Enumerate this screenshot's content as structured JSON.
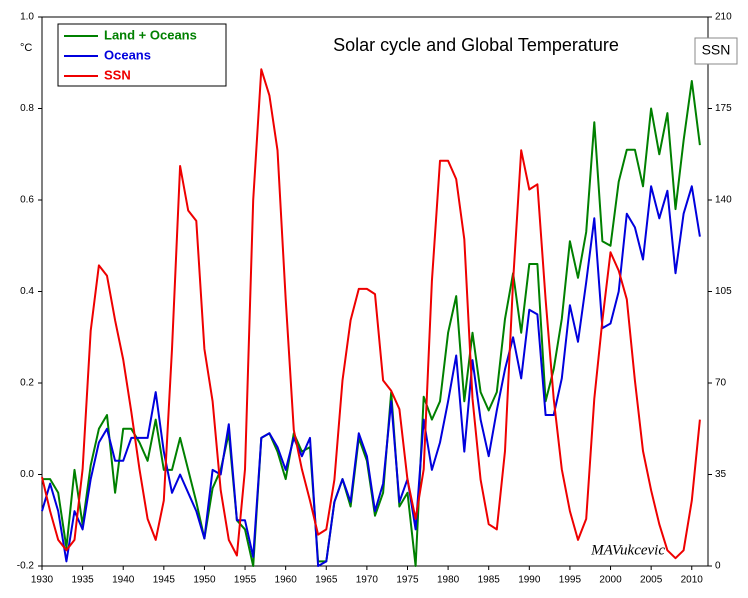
{
  "chart_data": {
    "type": "line",
    "title": "Solar cycle and Global Temperature",
    "ylabel": "°C",
    "y2label": "SSN",
    "annotation": "MAVukcevic",
    "legend": "upper left",
    "x": [
      1930,
      1931,
      1932,
      1933,
      1934,
      1935,
      1936,
      1937,
      1938,
      1939,
      1940,
      1941,
      1942,
      1943,
      1944,
      1945,
      1946,
      1947,
      1948,
      1949,
      1950,
      1951,
      1952,
      1953,
      1954,
      1955,
      1956,
      1957,
      1958,
      1959,
      1960,
      1961,
      1962,
      1963,
      1964,
      1965,
      1966,
      1967,
      1968,
      1969,
      1970,
      1971,
      1972,
      1973,
      1974,
      1975,
      1976,
      1977,
      1978,
      1979,
      1980,
      1981,
      1982,
      1983,
      1984,
      1985,
      1986,
      1987,
      1988,
      1989,
      1990,
      1991,
      1992,
      1993,
      1994,
      1995,
      1996,
      1997,
      1998,
      1999,
      2000,
      2001,
      2002,
      2003,
      2004,
      2005,
      2006,
      2007,
      2008,
      2009,
      2010,
      2011
    ],
    "series": [
      {
        "name": "Land + Oceans",
        "color": "#008000",
        "values": [
          -0.01,
          -0.01,
          -0.04,
          -0.16,
          0.01,
          -0.11,
          0.02,
          0.1,
          0.13,
          -0.04,
          0.1,
          0.1,
          0.07,
          0.03,
          0.12,
          0.01,
          0.01,
          0.08,
          0.01,
          -0.06,
          -0.14,
          -0.03,
          0.01,
          0.09,
          -0.1,
          -0.12,
          -0.2,
          0.08,
          0.09,
          0.05,
          -0.01,
          0.09,
          0.05,
          0.06,
          -0.19,
          -0.19,
          -0.06,
          -0.01,
          -0.07,
          0.08,
          0.03,
          -0.09,
          -0.04,
          0.18,
          -0.07,
          -0.04,
          -0.2,
          0.17,
          0.12,
          0.16,
          0.31,
          0.39,
          0.16,
          0.31,
          0.18,
          0.14,
          0.18,
          0.34,
          0.44,
          0.31,
          0.46,
          0.46,
          0.16,
          0.23,
          0.34,
          0.51,
          0.43,
          0.53,
          0.77,
          0.51,
          0.5,
          0.64,
          0.71,
          0.71,
          0.63,
          0.8,
          0.7,
          0.79,
          0.58,
          0.73,
          0.86,
          0.72
        ]
      },
      {
        "name": "Oceans",
        "color": "#0000dd",
        "values": [
          -0.08,
          -0.02,
          -0.08,
          -0.19,
          -0.08,
          -0.12,
          -0.01,
          0.07,
          0.1,
          0.03,
          0.03,
          0.08,
          0.08,
          0.08,
          0.18,
          0.05,
          -0.04,
          0,
          -0.04,
          -0.08,
          -0.14,
          0.01,
          0,
          0.11,
          -0.1,
          -0.1,
          -0.18,
          0.08,
          0.09,
          0.06,
          0.01,
          0.08,
          0.04,
          0.08,
          -0.2,
          -0.19,
          -0.06,
          -0.01,
          -0.06,
          0.09,
          0.04,
          -0.08,
          -0.02,
          0.16,
          -0.06,
          -0.01,
          -0.12,
          0.12,
          0.01,
          0.07,
          0.16,
          0.26,
          0.05,
          0.25,
          0.12,
          0.04,
          0.14,
          0.23,
          0.3,
          0.21,
          0.36,
          0.35,
          0.13,
          0.13,
          0.21,
          0.37,
          0.29,
          0.42,
          0.56,
          0.32,
          0.33,
          0.4,
          0.57,
          0.54,
          0.47,
          0.63,
          0.56,
          0.62,
          0.44,
          0.57,
          0.63,
          0.52
        ]
      },
      {
        "name": "SSN",
        "color": "#ee0000",
        "axis": "y2",
        "values": [
          34,
          21,
          10,
          6,
          10,
          37,
          90,
          115,
          111,
          94,
          79,
          59,
          37,
          18,
          10,
          25,
          83,
          153,
          136,
          132,
          83,
          63,
          29,
          10,
          4,
          37,
          140,
          190,
          180,
          159,
          102,
          52,
          37,
          25,
          12,
          14,
          33,
          71,
          94,
          106,
          106,
          104,
          71,
          67,
          60,
          33,
          18,
          37,
          109,
          155,
          155,
          148,
          125,
          64,
          33,
          16,
          14,
          44,
          109,
          159,
          144,
          146,
          102,
          64,
          37,
          21,
          10,
          18,
          64,
          94,
          120,
          113,
          102,
          71,
          44,
          29,
          16,
          6,
          3,
          6,
          25,
          56
        ]
      }
    ],
    "xlim": [
      1930,
      2012
    ],
    "xticks": [
      1930,
      1935,
      1940,
      1945,
      1950,
      1955,
      1960,
      1965,
      1970,
      1975,
      1980,
      1985,
      1990,
      1995,
      2000,
      2005,
      2010
    ],
    "ylim": [
      -0.2,
      1.0
    ],
    "yticks": [
      -0.2,
      {
        "value": 0,
        "label": "0.0"
      },
      0.2,
      0.4,
      0.6,
      0.8,
      {
        "value": 1,
        "label": "1.0"
      }
    ],
    "y2lim": [
      0,
      210
    ],
    "y2ticks": [
      0,
      35,
      70,
      105,
      140,
      175,
      210
    ]
  }
}
